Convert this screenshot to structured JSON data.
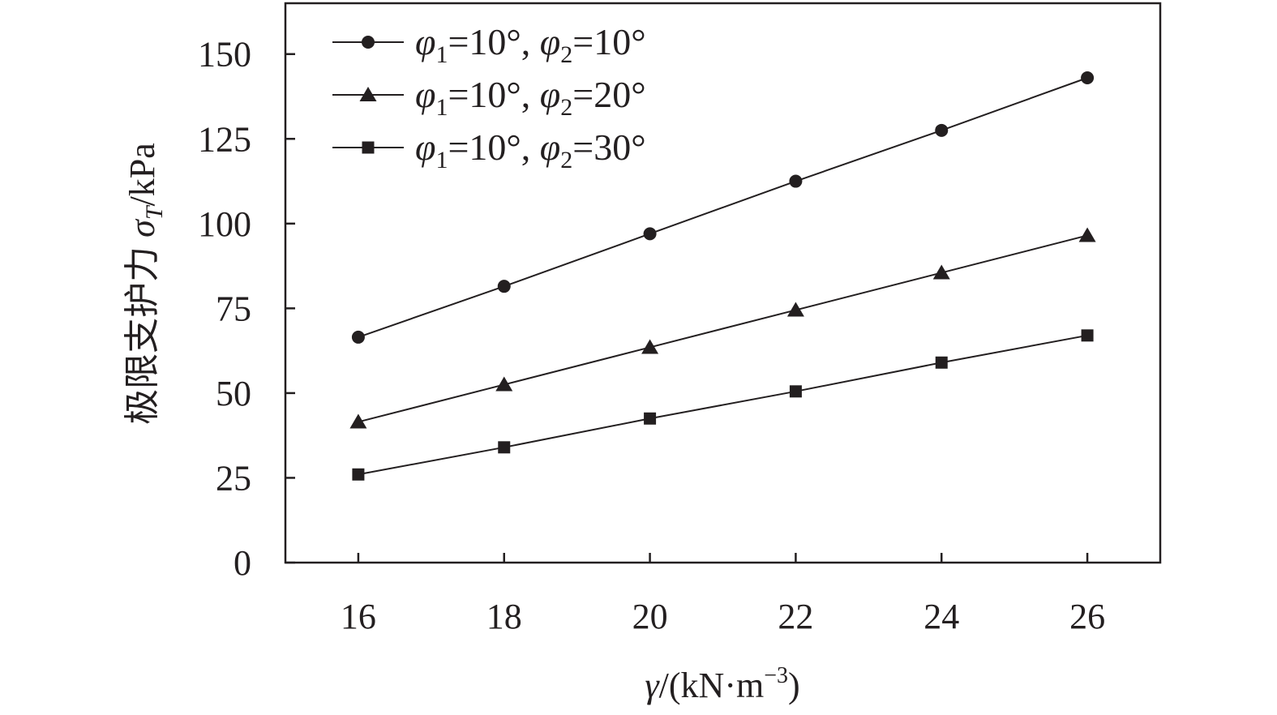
{
  "chart_data": {
    "type": "line",
    "title": "",
    "xlabel": {
      "var": "γ",
      "unit_prefix": "/(kN·m",
      "unit_sup": "−3",
      "unit_suffix": ")"
    },
    "ylabel": {
      "prefix": "极限支护力 ",
      "var": "σ",
      "sub": "T",
      "unit": "/kPa"
    },
    "x": [
      16,
      18,
      20,
      22,
      24,
      26
    ],
    "xlim": [
      15,
      27
    ],
    "ylim": [
      0,
      165
    ],
    "xticks": [
      "16",
      "18",
      "20",
      "22",
      "24",
      "26"
    ],
    "yticks": [
      "0",
      "25",
      "50",
      "75",
      "100",
      "125",
      "150"
    ],
    "legend_position": "top-left",
    "grid": false,
    "series": [
      {
        "name": "φ1=10°, φ2=10°",
        "legend": {
          "a": "φ",
          "asub": "1",
          "mid": "=10°, ",
          "b": "φ",
          "bsub": "2",
          "end": "=10°"
        },
        "marker": "circle",
        "values": [
          66.5,
          81.5,
          97.0,
          112.5,
          127.5,
          143.0
        ]
      },
      {
        "name": "φ1=10°, φ2=20°",
        "legend": {
          "a": "φ",
          "asub": "1",
          "mid": "=10°, ",
          "b": "φ",
          "bsub": "2",
          "end": "=20°"
        },
        "marker": "triangle",
        "values": [
          41.5,
          52.5,
          63.5,
          74.5,
          85.5,
          96.5
        ]
      },
      {
        "name": "φ1=10°, φ2=30°",
        "legend": {
          "a": "φ",
          "asub": "1",
          "mid": "=10°, ",
          "b": "φ",
          "bsub": "2",
          "end": "=30°"
        },
        "marker": "square",
        "values": [
          26.0,
          34.0,
          42.5,
          50.5,
          59.0,
          67.0
        ]
      }
    ],
    "colors": {
      "line": "#231f20",
      "marker": "#231f20"
    }
  }
}
